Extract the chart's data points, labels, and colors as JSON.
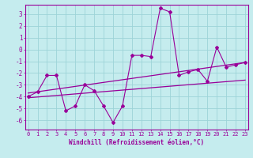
{
  "xlabel": "Windchill (Refroidissement éolien,°C)",
  "background_color": "#c5ecee",
  "grid_color": "#9dd4d8",
  "line_color": "#990099",
  "x_values": [
    0,
    1,
    2,
    3,
    4,
    5,
    6,
    7,
    8,
    9,
    10,
    11,
    12,
    13,
    14,
    15,
    16,
    17,
    18,
    19,
    20,
    21,
    22,
    23
  ],
  "data_line": [
    -4.0,
    -3.6,
    -2.2,
    -2.2,
    -5.2,
    -4.8,
    -3.0,
    -3.5,
    -4.8,
    -6.2,
    -4.8,
    -0.5,
    -0.5,
    -0.6,
    3.5,
    3.2,
    -2.2,
    -1.9,
    -1.7,
    -2.7,
    0.2,
    -1.5,
    -1.3,
    -1.1
  ],
  "reg_line1_x": [
    0,
    23
  ],
  "reg_line1_y": [
    -3.7,
    -1.1
  ],
  "reg_line2_x": [
    0,
    23
  ],
  "reg_line2_y": [
    -4.1,
    -2.6
  ],
  "ylim": [
    -6.8,
    3.8
  ],
  "xlim": [
    -0.3,
    23.3
  ],
  "yticks": [
    3,
    2,
    1,
    0,
    -1,
    -2,
    -3,
    -4,
    -5,
    -6
  ],
  "xticks": [
    0,
    1,
    2,
    3,
    4,
    5,
    6,
    7,
    8,
    9,
    10,
    11,
    12,
    13,
    14,
    15,
    16,
    17,
    18,
    19,
    20,
    21,
    22,
    23
  ],
  "tick_fontsize": 5.0,
  "xlabel_fontsize": 5.5
}
